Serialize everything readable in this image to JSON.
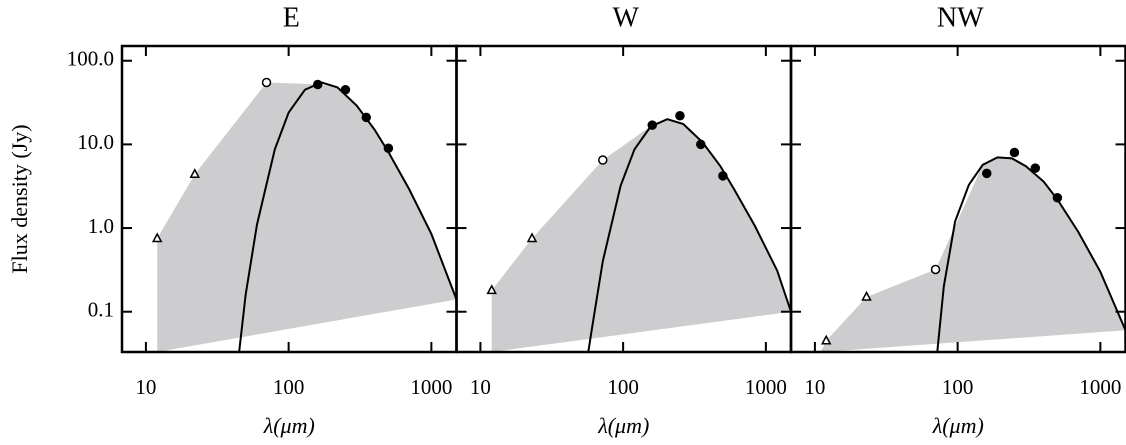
{
  "chart_data": [
    {
      "type": "line",
      "title": "E",
      "xlabel": "λ(μm)",
      "ylabel": "Flux density (Jy)",
      "xscale": "log",
      "yscale": "log",
      "grid": false,
      "ytick_labels": true,
      "xlim": [
        6.8,
        1500
      ],
      "ylim": [
        0.033,
        150
      ],
      "xticks": [
        10,
        100,
        1000
      ],
      "yticks": [
        0.1,
        {
          "value": 1,
          "label": "1.0"
        },
        {
          "value": 10,
          "label": "10.0"
        },
        {
          "value": 100,
          "label": "100.0"
        }
      ],
      "series": [
        {
          "style": "area",
          "color": "#cdcdcf",
          "x": [
            12,
            12,
            22,
            70,
            170,
            220,
            300,
            400,
            500,
            700,
            1000,
            1500
          ],
          "values": [
            0.033,
            0.75,
            4.4,
            55,
            52,
            48,
            29,
            15,
            8.1,
            2.9,
            0.85,
            0.14
          ]
        },
        {
          "style": "line",
          "color": "#000000",
          "x": [
            45,
            50,
            60,
            80,
            100,
            130,
            170,
            220,
            300,
            400,
            500,
            700,
            1000,
            1500
          ],
          "values": [
            0.033,
            0.16,
            1.1,
            8.7,
            24,
            45,
            55,
            48,
            29,
            15,
            8.1,
            2.9,
            0.85,
            0.14
          ]
        },
        {
          "style": "marker",
          "marker": "triangle",
          "filled": false,
          "color": "#000000",
          "x": [
            12,
            22
          ],
          "values": [
            0.75,
            4.4
          ]
        },
        {
          "style": "marker",
          "marker": "circle",
          "filled": false,
          "color": "#000000",
          "x": [
            70
          ],
          "values": [
            55
          ]
        },
        {
          "style": "marker",
          "marker": "circle",
          "filled": true,
          "color": "#000000",
          "x": [
            160,
            250,
            350,
            500
          ],
          "values": [
            52,
            45,
            21,
            9
          ]
        }
      ]
    },
    {
      "type": "line",
      "title": "W",
      "xlabel": "λ(μm)",
      "xscale": "log",
      "yscale": "log",
      "grid": false,
      "ytick_labels": false,
      "xlim": [
        6.8,
        1500
      ],
      "ylim": [
        0.033,
        150
      ],
      "xticks": [
        10,
        100,
        1000
      ],
      "yticks": [
        0.1,
        1,
        10,
        100
      ],
      "series": [
        {
          "style": "area",
          "color": "#cdcdcf",
          "x": [
            12,
            12,
            23,
            72,
            160,
            204,
            264,
            360,
            480,
            600,
            840,
            1200,
            1500
          ],
          "values": [
            0.033,
            0.18,
            0.75,
            6.5,
            17,
            20,
            17.5,
            10.6,
            5.5,
            2.9,
            1.05,
            0.31,
            0.1
          ]
        },
        {
          "style": "line",
          "color": "#000000",
          "x": [
            57,
            60,
            72,
            96,
            120,
            156,
            204,
            264,
            360,
            480,
            600,
            840,
            1200,
            1500
          ],
          "values": [
            0.033,
            0.058,
            0.4,
            3.2,
            8.7,
            16.4,
            20,
            17.5,
            10.6,
            5.5,
            2.9,
            1.05,
            0.31,
            0.1
          ]
        },
        {
          "style": "marker",
          "marker": "triangle",
          "filled": false,
          "color": "#000000",
          "x": [
            12,
            23
          ],
          "values": [
            0.18,
            0.75
          ]
        },
        {
          "style": "marker",
          "marker": "circle",
          "filled": false,
          "color": "#000000",
          "x": [
            72
          ],
          "values": [
            6.5
          ]
        },
        {
          "style": "marker",
          "marker": "circle",
          "filled": true,
          "color": "#000000",
          "x": [
            160,
            250,
            350,
            500
          ],
          "values": [
            17,
            22,
            10,
            4.2
          ]
        }
      ]
    },
    {
      "type": "line",
      "title": "NW",
      "xlabel": "λ(μm)",
      "xscale": "log",
      "yscale": "log",
      "grid": false,
      "ytick_labels": false,
      "xlim": [
        6.8,
        1500
      ],
      "ylim": [
        0.033,
        150
      ],
      "xticks": [
        10,
        100,
        1000
      ],
      "yticks": [
        0.1,
        1,
        10,
        100
      ],
      "series": [
        {
          "style": "area",
          "color": "#cdcdcf",
          "x": [
            11,
            12,
            23,
            70,
            150,
            190,
            240,
            300,
            400,
            500,
            700,
            1000,
            1500
          ],
          "values": [
            0.033,
            0.045,
            0.15,
            0.32,
            5.7,
            7,
            6.8,
            5.5,
            3.6,
            2.2,
            0.9,
            0.3,
            0.06
          ]
        },
        {
          "style": "line",
          "color": "#000000",
          "x": [
            72,
            80,
            96,
            120,
            150,
            190,
            240,
            300,
            400,
            500,
            700,
            1000,
            1500
          ],
          "values": [
            0.033,
            0.2,
            1.2,
            3.3,
            5.7,
            7,
            6.8,
            5.5,
            3.6,
            2.2,
            0.9,
            0.3,
            0.06
          ]
        },
        {
          "style": "marker",
          "marker": "triangle",
          "filled": false,
          "color": "#000000",
          "x": [
            12,
            23
          ],
          "values": [
            0.045,
            0.15
          ]
        },
        {
          "style": "marker",
          "marker": "circle",
          "filled": false,
          "color": "#000000",
          "x": [
            70
          ],
          "values": [
            0.32
          ]
        },
        {
          "style": "marker",
          "marker": "circle",
          "filled": true,
          "color": "#000000",
          "x": [
            160,
            250,
            350,
            500
          ],
          "values": [
            4.5,
            8,
            5.2,
            2.3
          ]
        }
      ]
    }
  ]
}
